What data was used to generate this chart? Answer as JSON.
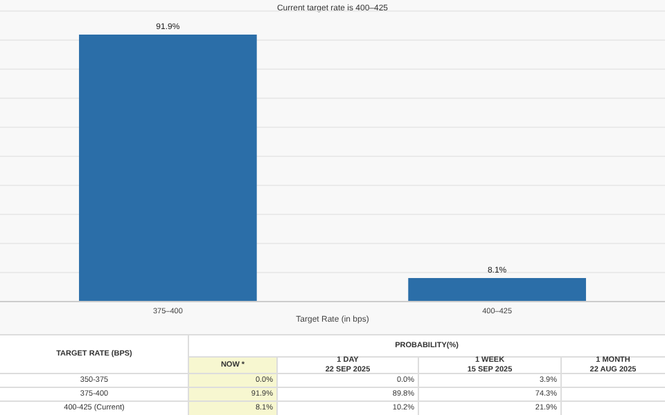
{
  "chart_data": {
    "type": "bar",
    "title": "Current target rate is 400–425",
    "xlabel": "Target Rate (in bps)",
    "categories": [
      "375–400",
      "400–425"
    ],
    "values": [
      91.9,
      8.1
    ],
    "value_labels": [
      "91.9%",
      "8.1%"
    ],
    "color": "#2b6ea8",
    "ylim": [
      0,
      100
    ],
    "yticks": [
      {
        "value": 0,
        "label": null
      },
      {
        "value": 10,
        "label": null
      },
      {
        "value": 20,
        "label": null
      },
      {
        "value": 30,
        "label": null
      },
      {
        "value": 40,
        "label": null
      },
      {
        "value": 50,
        "label": null
      },
      {
        "value": 60,
        "label": null
      },
      {
        "value": 70,
        "label": null
      },
      {
        "value": 80,
        "label": null
      },
      {
        "value": 90,
        "label": null
      },
      {
        "value": 100,
        "label": null
      }
    ],
    "grid": "y",
    "tick_labels": "x",
    "annotations": [
      "TARGET RATE (BPS)",
      "PROBABILITY(%)",
      "NOW *",
      "1 DAY\n22 SEP 2025",
      "1 WEEK\n15 SEP 2025",
      "1 MONTH\n22 AUG 2025",
      "350-375",
      "0.0%",
      "0.0%",
      "3.9%",
      "375-400",
      "91.9%",
      "89.8%",
      "74.3%",
      "400-425 (Current)",
      "8.1%",
      "10.2%",
      "21.9%"
    ]
  }
}
